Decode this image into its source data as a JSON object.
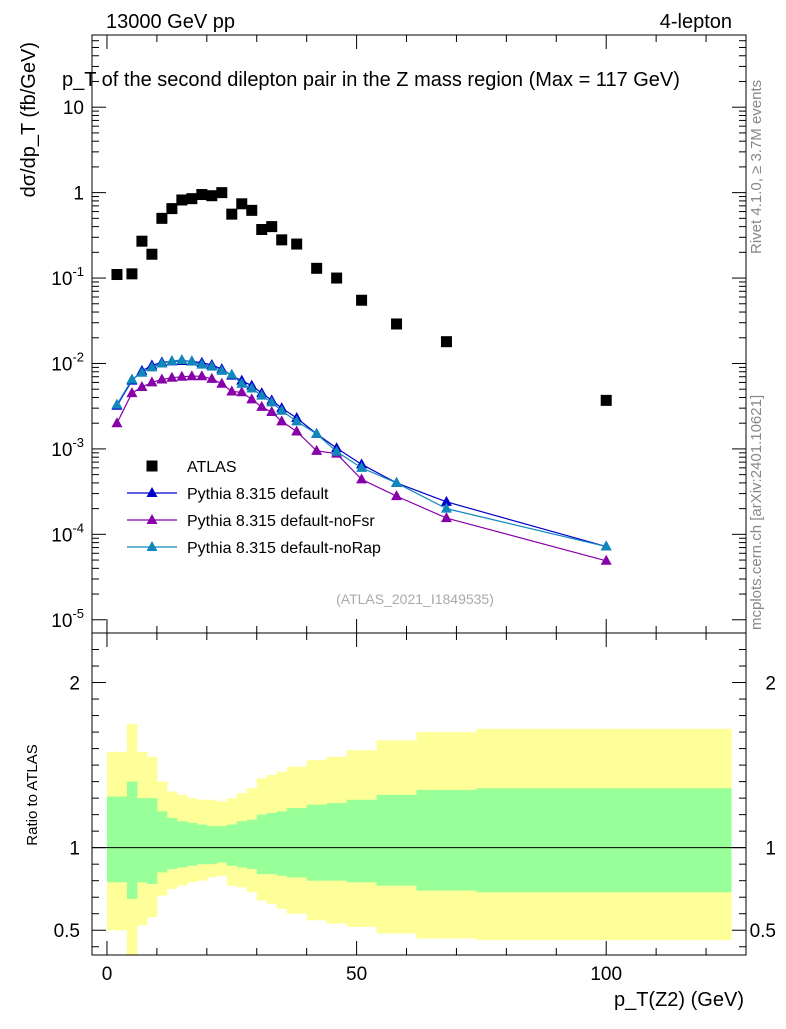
{
  "header": {
    "left": "13000 GeV pp",
    "right": "4-lepton",
    "title": "p_T of the second dilepton pair in the Z mass region (Max = 117 GeV)"
  },
  "side_labels": {
    "rivet": "Rivet 4.1.0, ≥ 3.7M events",
    "mcplots": "mcplots.cern.ch [arXiv:2401.10621]"
  },
  "watermark": "(ATLAS_2021_I1849535)",
  "chart_data": [
    {
      "type": "scatter",
      "yscale": "log",
      "ylabel": "dσ/dp_T (fb/GeV)",
      "xlim": [
        -3,
        128
      ],
      "ylim": [
        7e-06,
        70
      ],
      "y_tick_labels": [
        "10^-5",
        "10^-4",
        "10^-3",
        "10^-2",
        "10^-1",
        "1",
        "10"
      ],
      "legend_position": "lower-left",
      "series": [
        {
          "name": "ATLAS",
          "color": "#000000",
          "marker": "square",
          "line": false,
          "x": [
            2,
            5,
            7,
            9,
            11,
            13,
            15,
            17,
            19,
            21,
            23,
            25,
            27,
            29,
            31,
            33,
            35,
            38,
            42,
            46,
            51,
            58,
            68,
            100
          ],
          "y": [
            0.11,
            0.112,
            0.27,
            0.19,
            0.5,
            0.65,
            0.82,
            0.85,
            0.95,
            0.92,
            1.0,
            0.56,
            0.74,
            0.62,
            0.37,
            0.4,
            0.28,
            0.25,
            0.13,
            0.1,
            0.055,
            0.029,
            0.018,
            0.0037
          ]
        },
        {
          "name": "Pythia 8.315 default",
          "color": "#0000cc",
          "marker": "triangle",
          "line": true,
          "x": [
            2,
            5,
            7,
            9,
            11,
            13,
            15,
            17,
            19,
            21,
            23,
            25,
            27,
            29,
            31,
            33,
            35,
            38,
            42,
            46,
            51,
            58,
            68,
            100
          ],
          "y": [
            0.0032,
            0.0063,
            0.0082,
            0.0095,
            0.0103,
            0.0106,
            0.0107,
            0.0106,
            0.0102,
            0.0096,
            0.0086,
            0.0072,
            0.0063,
            0.0055,
            0.0045,
            0.0037,
            0.003,
            0.0023,
            0.0015,
            0.00102,
            0.00066,
            0.0004,
            0.00024,
            7.2e-05
          ]
        },
        {
          "name": "Pythia 8.315 default-noFsr",
          "color": "#8800aa",
          "marker": "triangle",
          "line": true,
          "x": [
            2,
            5,
            7,
            9,
            11,
            13,
            15,
            17,
            19,
            21,
            23,
            25,
            27,
            29,
            31,
            33,
            35,
            38,
            42,
            46,
            51,
            58,
            68,
            100
          ],
          "y": [
            0.002,
            0.0045,
            0.0053,
            0.006,
            0.0065,
            0.0068,
            0.007,
            0.0071,
            0.0071,
            0.0066,
            0.0058,
            0.0047,
            0.0046,
            0.0038,
            0.0031,
            0.0027,
            0.0021,
            0.0016,
            0.00095,
            0.00088,
            0.00044,
            0.00028,
            0.000155,
            4.9e-05
          ]
        },
        {
          "name": "Pythia 8.315 default-noRap",
          "color": "#1188bb",
          "marker": "triangle",
          "line": true,
          "x": [
            2,
            5,
            7,
            9,
            11,
            13,
            15,
            17,
            19,
            21,
            23,
            25,
            27,
            29,
            31,
            33,
            35,
            38,
            42,
            46,
            51,
            58,
            68,
            100
          ],
          "y": [
            0.0033,
            0.0065,
            0.0078,
            0.009,
            0.01,
            0.0107,
            0.011,
            0.0105,
            0.0097,
            0.0092,
            0.0082,
            0.0074,
            0.0058,
            0.0051,
            0.0042,
            0.0035,
            0.0028,
            0.0021,
            0.0015,
            0.00093,
            0.0006,
            0.0004,
            0.0002,
            7.2e-05
          ]
        }
      ]
    },
    {
      "type": "area",
      "ylabel": "Ratio to ATLAS",
      "xlabel": "p_T(Z2) (GeV)",
      "xlim": [
        -3,
        128
      ],
      "ylim": [
        0.35,
        2.3
      ],
      "x_ticks": [
        0,
        50,
        100
      ],
      "y_ticks": [
        0.5,
        1,
        2
      ],
      "reference_line": 1,
      "bins": [
        0,
        4,
        6,
        8,
        10,
        12,
        14,
        16,
        18,
        20,
        22,
        24,
        26,
        28,
        30,
        32,
        34,
        36,
        40,
        44,
        48,
        54,
        62,
        74,
        125
      ],
      "band_inner": {
        "color": "#99ff99",
        "lower": [
          0.79,
          0.69,
          0.79,
          0.78,
          0.85,
          0.87,
          0.88,
          0.89,
          0.9,
          0.9,
          0.91,
          0.89,
          0.88,
          0.87,
          0.84,
          0.84,
          0.83,
          0.82,
          0.8,
          0.8,
          0.79,
          0.77,
          0.74,
          0.73
        ],
        "upper": [
          1.31,
          1.4,
          1.3,
          1.3,
          1.22,
          1.18,
          1.16,
          1.15,
          1.14,
          1.13,
          1.13,
          1.14,
          1.16,
          1.17,
          1.2,
          1.21,
          1.22,
          1.24,
          1.26,
          1.27,
          1.29,
          1.32,
          1.35,
          1.36
        ]
      },
      "band_outer": {
        "color": "#ffff99",
        "lower": [
          0.5,
          0.33,
          0.53,
          0.58,
          0.71,
          0.75,
          0.77,
          0.79,
          0.8,
          0.82,
          0.83,
          0.77,
          0.76,
          0.73,
          0.68,
          0.66,
          0.63,
          0.6,
          0.56,
          0.54,
          0.52,
          0.48,
          0.45,
          0.44
        ],
        "upper": [
          1.58,
          1.75,
          1.58,
          1.55,
          1.4,
          1.34,
          1.32,
          1.3,
          1.29,
          1.29,
          1.28,
          1.3,
          1.33,
          1.36,
          1.42,
          1.44,
          1.46,
          1.49,
          1.53,
          1.55,
          1.59,
          1.65,
          1.7,
          1.72
        ]
      }
    }
  ]
}
